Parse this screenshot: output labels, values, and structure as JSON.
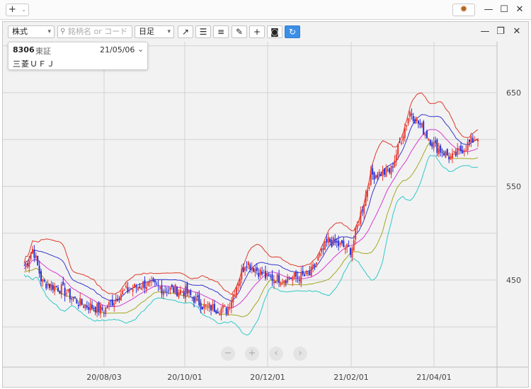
{
  "titlebar": {
    "new_label": "+",
    "app_icon": "settings-gear-icon",
    "minimize": "—",
    "maximize": "☐",
    "close": "✕"
  },
  "toolbar": {
    "asset_type": "株式",
    "search_placeholder": "銘柄名 or コード",
    "period": "日足",
    "tools": [
      "trend-line-icon",
      "align-left-icon",
      "align-right-icon",
      "pen-icon",
      "crosshair-icon",
      "camera-icon",
      "reload-icon"
    ]
  },
  "panel_controls": {
    "minimize": "—",
    "restore": "❐",
    "close": "✕"
  },
  "stock": {
    "code": "8306",
    "market": "東証",
    "date": "21/05/06",
    "name": "三菱ＵＦＪ"
  },
  "chart_data": {
    "type": "candlestick",
    "title": "",
    "y_ticks": [
      450,
      550,
      650
    ],
    "x_ticks": [
      "20/08/03",
      "20/10/01",
      "20/12/01",
      "21/02/01",
      "21/04/01"
    ],
    "ylim": [
      390,
      690
    ],
    "grid": true,
    "colors": {
      "up": "#e8392f",
      "down": "#2a2fd6",
      "bb_upper2": "#dd3a2a",
      "bb_upper1": "#3535cc",
      "bb_mid": "#d63ad0",
      "bb_lower1": "#a2a820",
      "bb_lower2": "#2ec9c9"
    },
    "close_approx": [
      {
        "date": "20/06/01",
        "close": 462
      },
      {
        "date": "20/06/08",
        "close": 484
      },
      {
        "date": "20/06/15",
        "close": 448
      },
      {
        "date": "20/07/01",
        "close": 440
      },
      {
        "date": "20/07/15",
        "close": 425
      },
      {
        "date": "20/08/03",
        "close": 418
      },
      {
        "date": "20/08/15",
        "close": 436
      },
      {
        "date": "20/09/01",
        "close": 446
      },
      {
        "date": "20/09/15",
        "close": 441
      },
      {
        "date": "20/10/01",
        "close": 438
      },
      {
        "date": "20/10/15",
        "close": 422
      },
      {
        "date": "20/11/01",
        "close": 418
      },
      {
        "date": "20/11/15",
        "close": 470
      },
      {
        "date": "20/12/01",
        "close": 452
      },
      {
        "date": "20/12/15",
        "close": 452
      },
      {
        "date": "21/01/01",
        "close": 455
      },
      {
        "date": "21/01/15",
        "close": 492
      },
      {
        "date": "21/02/01",
        "close": 482
      },
      {
        "date": "21/02/15",
        "close": 562
      },
      {
        "date": "21/03/01",
        "close": 566
      },
      {
        "date": "21/03/15",
        "close": 630
      },
      {
        "date": "21/04/01",
        "close": 594
      },
      {
        "date": "21/04/15",
        "close": 580
      },
      {
        "date": "21/05/06",
        "close": 604
      }
    ]
  },
  "chart_controls": [
    "zoom-out-icon",
    "zoom-in-icon",
    "scroll-left-icon",
    "scroll-right-icon"
  ]
}
